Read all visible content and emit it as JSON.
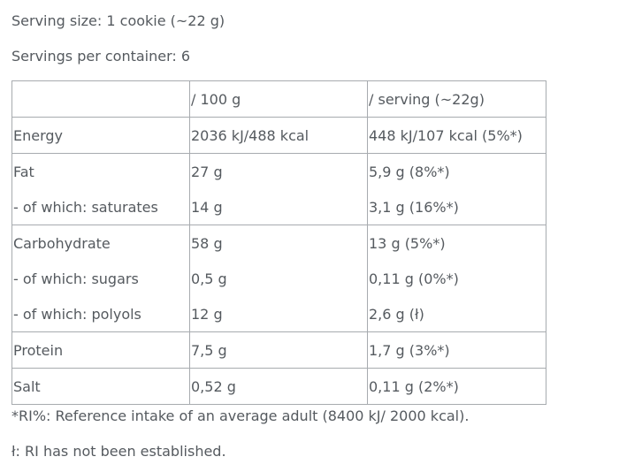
{
  "header": {
    "serving_size": "Serving size: 1 cookie (~22 g)",
    "servings_per_container": "Servings per container: 6"
  },
  "table": {
    "columns": [
      "",
      "/ 100 g",
      "/ serving (~22g)"
    ],
    "rows": [
      {
        "label": "Energy",
        "per100": "2036 kJ/488 kcal",
        "perServing": "448 kJ/107 kcal (5%*)",
        "groupStart": true
      },
      {
        "label": "Fat",
        "per100": "27 g",
        "perServing": "5,9 g (8%*)",
        "groupStart": true
      },
      {
        "label": "- of which: saturates",
        "per100": "14 g",
        "perServing": "3,1 g (16%*)",
        "groupStart": false
      },
      {
        "label": "Carbohydrate",
        "per100": "58 g",
        "perServing": "13 g (5%*)",
        "groupStart": true
      },
      {
        "label": "- of which: sugars",
        "per100": "0,5 g",
        "perServing": "0,11 g (0%*)",
        "groupStart": false
      },
      {
        "label": "- of which: polyols",
        "per100": "12 g",
        "perServing": "2,6 g (ł)",
        "groupStart": false
      },
      {
        "label": "Protein",
        "per100": "7,5 g",
        "perServing": "1,7 g (3%*)",
        "groupStart": true
      },
      {
        "label": "Salt",
        "per100": "0,52 g",
        "perServing": "0,11 g (2%*)",
        "groupStart": true
      }
    ]
  },
  "footnotes": {
    "ri": "*RI%: Reference intake of an average adult (8400 kJ/ 2000 kcal).",
    "not_established": "ł: RI has not been established."
  }
}
